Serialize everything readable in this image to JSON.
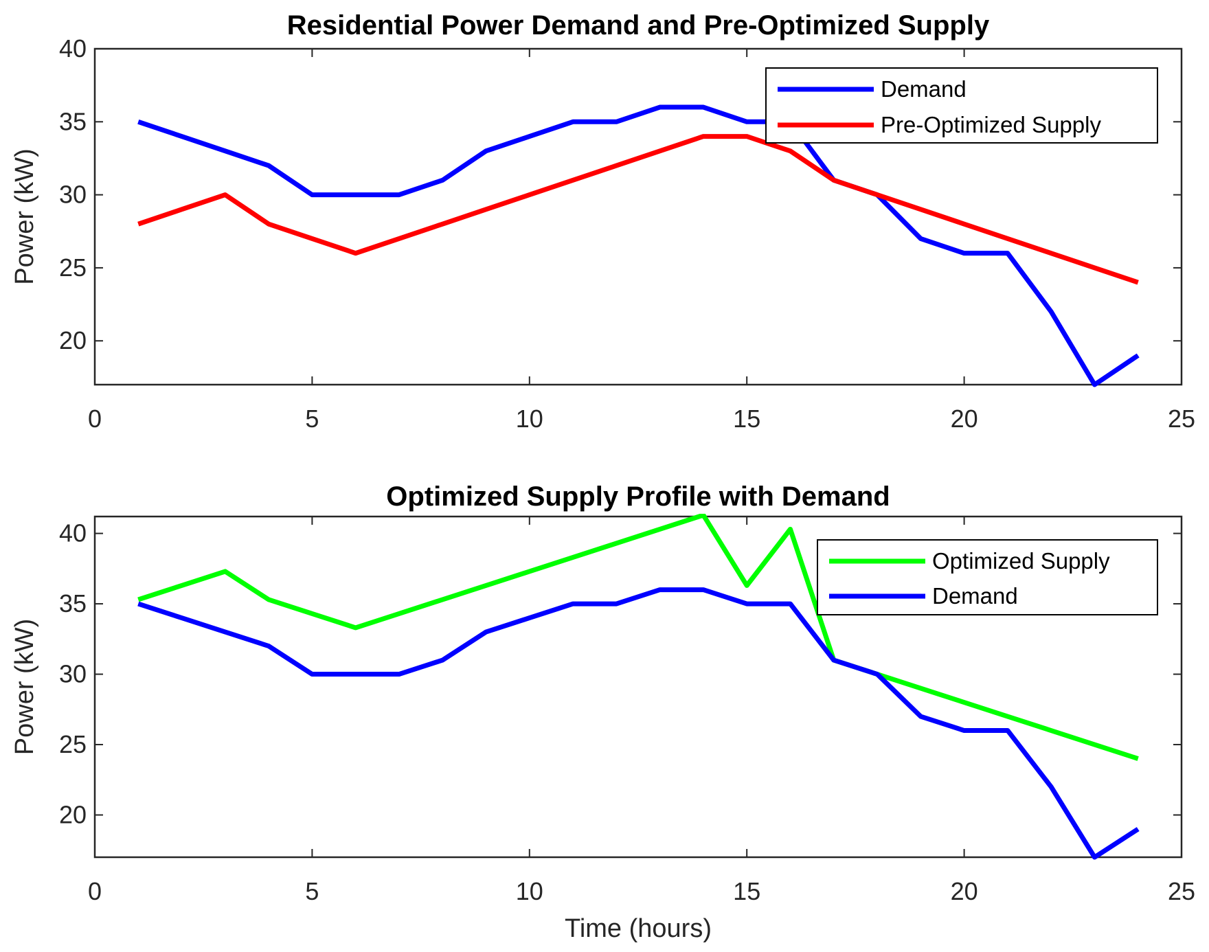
{
  "chart_data": [
    {
      "type": "line",
      "title": "Residential Power Demand and Pre-Optimized Supply",
      "xlabel": "",
      "ylabel": "Power (kW)",
      "xlim": [
        0,
        25
      ],
      "ylim": [
        17,
        40
      ],
      "xticks": [
        0,
        5,
        10,
        15,
        20,
        25
      ],
      "yticks": [
        20,
        25,
        30,
        35,
        40
      ],
      "grid": false,
      "legend_position": "top-right",
      "x": [
        1,
        2,
        3,
        4,
        5,
        6,
        7,
        8,
        9,
        10,
        11,
        12,
        13,
        14,
        15,
        16,
        17,
        18,
        19,
        20,
        21,
        22,
        23,
        24
      ],
      "series": [
        {
          "name": "Demand",
          "color": "#0000ff",
          "values": [
            35,
            34,
            33,
            32,
            30,
            30,
            30,
            31,
            33,
            34,
            35,
            35,
            36,
            36,
            35,
            35,
            31,
            30,
            27,
            26,
            26,
            22,
            17,
            19
          ]
        },
        {
          "name": "Pre-Optimized Supply",
          "color": "#ff0000",
          "values": [
            28,
            29,
            30,
            28,
            27,
            26,
            27,
            28,
            29,
            30,
            31,
            32,
            33,
            34,
            34,
            33,
            31,
            30,
            29,
            28,
            27,
            26,
            25,
            24
          ]
        }
      ]
    },
    {
      "type": "line",
      "title": "Optimized Supply Profile with Demand",
      "xlabel": "Time (hours)",
      "ylabel": "Power (kW)",
      "xlim": [
        0,
        25
      ],
      "ylim": [
        17,
        41.2
      ],
      "xticks": [
        0,
        5,
        10,
        15,
        20,
        25
      ],
      "yticks": [
        20,
        25,
        30,
        35,
        40
      ],
      "grid": false,
      "legend_position": "top-right",
      "x": [
        1,
        2,
        3,
        4,
        5,
        6,
        7,
        8,
        9,
        10,
        11,
        12,
        13,
        14,
        15,
        16,
        17,
        18,
        19,
        20,
        21,
        22,
        23,
        24
      ],
      "series": [
        {
          "name": "Optimized Supply",
          "color": "#00ff00",
          "values": [
            35.3,
            36.3,
            37.3,
            35.3,
            34.3,
            33.3,
            34.3,
            35.3,
            36.3,
            37.3,
            38.3,
            39.3,
            40.3,
            41.3,
            36.3,
            40.3,
            31,
            30,
            29,
            28,
            27,
            26,
            25,
            24
          ]
        },
        {
          "name": "Demand",
          "color": "#0000ff",
          "values": [
            35,
            34,
            33,
            32,
            30,
            30,
            30,
            31,
            33,
            34,
            35,
            35,
            36,
            36,
            35,
            35,
            31,
            30,
            27,
            26,
            26,
            22,
            17,
            19
          ]
        }
      ]
    }
  ]
}
